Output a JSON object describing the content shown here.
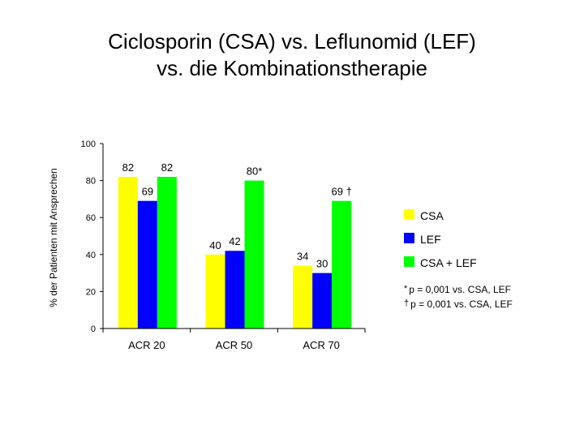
{
  "title_line1": "Ciclosporin (CSA) vs. Leflunomid (LEF)",
  "title_line2": "vs. die Kombinationstherapie",
  "chart_data": {
    "type": "bar",
    "title": "Ciclosporin (CSA) vs. Leflunomid (LEF) vs. die Kombinationstherapie",
    "categories": [
      "ACR 20",
      "ACR 50",
      "ACR 70"
    ],
    "series": [
      {
        "name": "CSA",
        "color": "#ffff00",
        "values": [
          82,
          40,
          34
        ],
        "labels": [
          "82",
          "40",
          "34"
        ]
      },
      {
        "name": "LEF",
        "color": "#0000ff",
        "values": [
          69,
          42,
          30
        ],
        "labels": [
          "69",
          "42",
          "30"
        ]
      },
      {
        "name": "CSA + LEF",
        "color": "#00ff00",
        "values": [
          82,
          80,
          69
        ],
        "labels": [
          "82",
          "80*",
          "69 †"
        ]
      }
    ],
    "xlabel": "",
    "ylabel": "% der Patienten mit Ansprechen",
    "ylim": [
      0,
      100
    ],
    "yticks": [
      "0",
      "20",
      "40",
      "60",
      "80",
      "100"
    ],
    "grid": false,
    "legend_position": "right"
  },
  "footnotes": [
    {
      "symbol": "*",
      "text": "p = 0,001 vs. CSA, LEF"
    },
    {
      "symbol": "†",
      "text": "p = 0,001 vs. CSA, LEF"
    }
  ]
}
